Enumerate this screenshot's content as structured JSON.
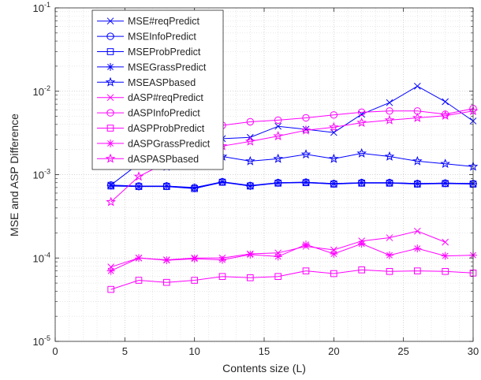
{
  "chart_data": {
    "type": "line",
    "xlabel": "Contents size (L)",
    "ylabel": "MSE and ASP Difference",
    "xlim": [
      0,
      30
    ],
    "ylim": [
      1e-05,
      0.1
    ],
    "y_scale": "log",
    "grid": true,
    "minor_grid": true,
    "legend_position": "top-left",
    "x_ticks": [
      0,
      5,
      10,
      15,
      20,
      25,
      30
    ],
    "x_tick_labels": [
      "0",
      "5",
      "10",
      "15",
      "20",
      "25",
      "30"
    ],
    "y_ticks": [
      1e-05,
      0.0001,
      0.001,
      0.01,
      0.1
    ],
    "y_tick_labels": [
      {
        "base": "10",
        "exp": "-5"
      },
      {
        "base": "10",
        "exp": "-4"
      },
      {
        "base": "10",
        "exp": "-3"
      },
      {
        "base": "10",
        "exp": "-2"
      },
      {
        "base": "10",
        "exp": "-1"
      }
    ],
    "x": [
      4,
      6,
      8,
      10,
      12,
      14,
      16,
      18,
      20,
      22,
      24,
      26,
      28,
      30
    ],
    "series": [
      {
        "name": "MSE#reqPredict",
        "color": "#0000ff",
        "marker": "x",
        "values": [
          0.00075,
          0.00135,
          0.0017,
          0.0024,
          0.0027,
          0.0028,
          0.0038,
          0.0035,
          0.0032,
          0.0053,
          0.0073,
          0.0115,
          0.0075,
          0.0044
        ]
      },
      {
        "name": "MSEInfoPredict",
        "color": "#0000ff",
        "marker": "o",
        "values": [
          0.00075,
          0.00073,
          0.00073,
          0.0007,
          0.00082,
          0.00074,
          0.0008,
          0.00081,
          0.00078,
          0.0008,
          0.0008,
          0.00078,
          0.00079,
          0.00078
        ]
      },
      {
        "name": "MSEProbPredict",
        "color": "#0000ff",
        "marker": "s",
        "values": [
          0.00073,
          0.00072,
          0.00072,
          0.00068,
          0.00081,
          0.00073,
          0.00079,
          0.0008,
          0.00077,
          0.00079,
          0.00079,
          0.00077,
          0.00078,
          0.00077
        ]
      },
      {
        "name": "MSEGrassPredict",
        "color": "#0000ff",
        "marker": "*",
        "values": [
          0.00074,
          0.00072,
          0.00073,
          0.00069,
          0.00082,
          0.00073,
          0.0008,
          0.00081,
          0.00078,
          0.0008,
          0.0008,
          0.00078,
          0.00079,
          0.00078
        ]
      },
      {
        "name": "MSEASPbased",
        "color": "#0000ff",
        "marker": "p",
        "values": [
          null,
          null,
          0.00125,
          0.0014,
          0.00165,
          0.00145,
          0.00155,
          0.00175,
          0.00155,
          0.0018,
          0.00165,
          0.00145,
          0.00135,
          0.00125
        ]
      },
      {
        "name": "dASP#reqPredict",
        "color": "#ff00ff",
        "marker": "x",
        "values": [
          7.8e-05,
          0.0001,
          9.5e-05,
          0.0001,
          0.0001,
          0.000112,
          0.000115,
          0.000138,
          0.000125,
          0.00016,
          0.000175,
          0.00021,
          0.000155,
          null
        ]
      },
      {
        "name": "dASPInfoPredict",
        "color": "#ff00ff",
        "marker": "o",
        "values": [
          null,
          0.0025,
          0.0028,
          0.0032,
          0.0039,
          0.0043,
          0.0045,
          0.0048,
          0.0052,
          0.0056,
          0.0058,
          0.0058,
          0.0053,
          0.0062
        ]
      },
      {
        "name": "dASPProbPredict",
        "color": "#ff00ff",
        "marker": "s",
        "values": [
          4.2e-05,
          5.4e-05,
          5.1e-05,
          5.4e-05,
          6e-05,
          5.8e-05,
          6e-05,
          7e-05,
          6.5e-05,
          7.2e-05,
          6.9e-05,
          7e-05,
          6.9e-05,
          6.6e-05
        ]
      },
      {
        "name": "dASPGrassPredict",
        "color": "#ff00ff",
        "marker": "*",
        "values": [
          7e-05,
          0.0001,
          9.4e-05,
          9.8e-05,
          9.5e-05,
          0.00011,
          0.000104,
          0.000145,
          0.000112,
          0.000148,
          0.000108,
          0.00013,
          0.000106,
          0.000108
        ]
      },
      {
        "name": "dASPASPbased",
        "color": "#ff00ff",
        "marker": "p",
        "values": [
          0.00047,
          0.00095,
          0.0014,
          0.0017,
          0.0022,
          0.0025,
          0.0029,
          0.0034,
          0.0037,
          0.0042,
          0.0045,
          0.0048,
          0.0051,
          0.0058
        ]
      }
    ]
  }
}
